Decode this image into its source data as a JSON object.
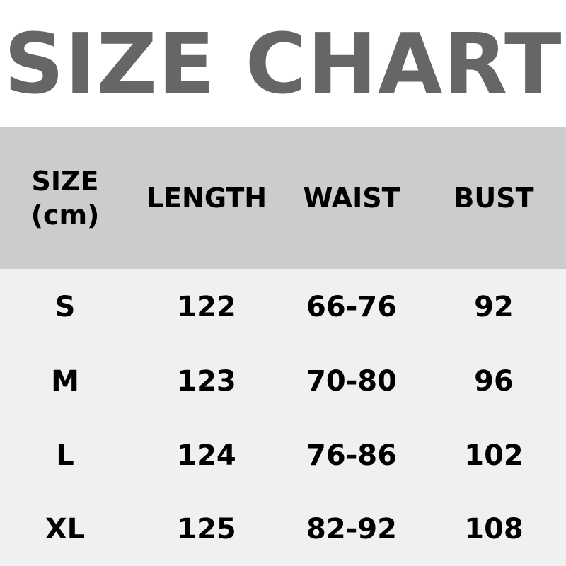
{
  "chart_data": {
    "type": "table",
    "title": "SIZE CHART",
    "columns": [
      "SIZE",
      "LENGTH",
      "WAIST",
      "BUST"
    ],
    "size_unit": "(cm)",
    "rows": [
      [
        "S",
        "122",
        "66-76",
        "92"
      ],
      [
        "M",
        "123",
        "70-80",
        "96"
      ],
      [
        "L",
        "124",
        "76-86",
        "102"
      ],
      [
        "XL",
        "125",
        "82-92",
        "108"
      ]
    ],
    "colors": {
      "title": "#666666",
      "header_bg": "#cccccc",
      "body_bg": "#f0f0f0"
    }
  }
}
